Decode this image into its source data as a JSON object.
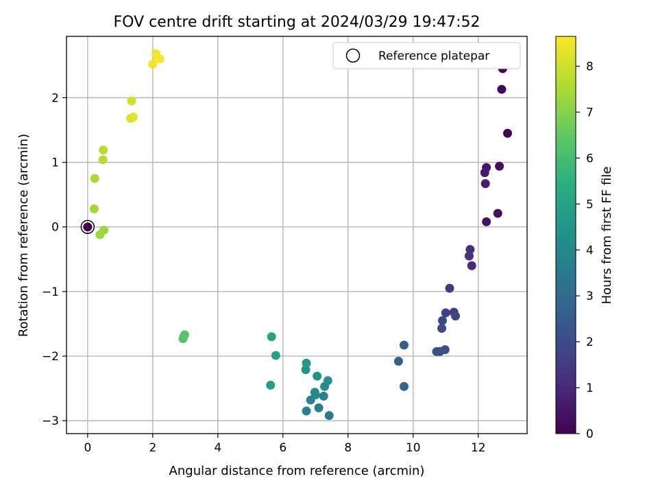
{
  "chart_data": {
    "type": "scatter",
    "title": "FOV centre drift starting at 2024/03/29 19:47:52",
    "xlabel": "Angular distance from reference (arcmin)",
    "ylabel": "Rotation from reference (arcmin)",
    "xlim": [
      -0.65,
      13.5
    ],
    "ylim": [
      -3.2,
      2.95
    ],
    "xticks": [
      0,
      2,
      4,
      6,
      8,
      10,
      12
    ],
    "xtick_labels": [
      "0",
      "2",
      "4",
      "6",
      "8",
      "10",
      "12"
    ],
    "yticks": [
      -3,
      -2,
      -1,
      0,
      1,
      2
    ],
    "ytick_labels": [
      "−3",
      "−2",
      "−1",
      "0",
      "1",
      "2"
    ],
    "grid": true,
    "legend": {
      "location": "upper right",
      "entries": [
        "Reference platepar"
      ]
    },
    "reference_point": {
      "x": 0,
      "y": 0
    },
    "colorbar": {
      "label": "Hours from first FF file",
      "colormap": "viridis",
      "range": [
        0,
        8.65
      ],
      "ticks": [
        0,
        1,
        2,
        3,
        4,
        5,
        6,
        7,
        8
      ],
      "tick_labels": [
        "0",
        "1",
        "2",
        "3",
        "4",
        "5",
        "6",
        "7",
        "8"
      ]
    },
    "points": [
      {
        "x": 0.0,
        "y": 0.0,
        "hours": 0.0
      },
      {
        "x": 12.9,
        "y": 1.45,
        "hours": 0.05
      },
      {
        "x": 12.75,
        "y": 2.45,
        "hours": 0.1
      },
      {
        "x": 12.72,
        "y": 2.13,
        "hours": 0.15
      },
      {
        "x": 12.65,
        "y": 0.94,
        "hours": 0.25
      },
      {
        "x": 12.6,
        "y": 0.21,
        "hours": 0.35
      },
      {
        "x": 12.25,
        "y": 0.08,
        "hours": 0.45
      },
      {
        "x": 12.25,
        "y": 0.92,
        "hours": 0.55
      },
      {
        "x": 12.2,
        "y": 0.84,
        "hours": 0.65
      },
      {
        "x": 12.22,
        "y": 0.67,
        "hours": 0.75
      },
      {
        "x": 11.8,
        "y": -0.6,
        "hours": 1.05
      },
      {
        "x": 11.75,
        "y": -0.35,
        "hours": 1.15
      },
      {
        "x": 11.72,
        "y": -0.45,
        "hours": 1.25
      },
      {
        "x": 11.12,
        "y": -0.95,
        "hours": 1.5
      },
      {
        "x": 11.0,
        "y": -1.33,
        "hours": 1.65
      },
      {
        "x": 11.25,
        "y": -1.32,
        "hours": 1.7
      },
      {
        "x": 11.3,
        "y": -1.38,
        "hours": 1.75
      },
      {
        "x": 10.9,
        "y": -1.45,
        "hours": 1.85
      },
      {
        "x": 10.88,
        "y": -1.57,
        "hours": 1.9
      },
      {
        "x": 10.98,
        "y": -1.9,
        "hours": 2.0
      },
      {
        "x": 10.82,
        "y": -1.93,
        "hours": 2.05
      },
      {
        "x": 10.72,
        "y": -1.93,
        "hours": 2.1
      },
      {
        "x": 9.72,
        "y": -1.83,
        "hours": 2.55
      },
      {
        "x": 9.55,
        "y": -2.08,
        "hours": 2.65
      },
      {
        "x": 9.72,
        "y": -2.47,
        "hours": 2.8
      },
      {
        "x": 7.42,
        "y": -2.92,
        "hours": 3.55
      },
      {
        "x": 7.1,
        "y": -2.8,
        "hours": 3.65
      },
      {
        "x": 6.72,
        "y": -2.85,
        "hours": 3.75
      },
      {
        "x": 7.25,
        "y": -2.62,
        "hours": 3.85
      },
      {
        "x": 6.85,
        "y": -2.68,
        "hours": 3.95
      },
      {
        "x": 7.0,
        "y": -2.6,
        "hours": 4.05
      },
      {
        "x": 6.98,
        "y": -2.56,
        "hours": 4.1
      },
      {
        "x": 7.28,
        "y": -2.47,
        "hours": 4.2
      },
      {
        "x": 7.38,
        "y": -2.38,
        "hours": 4.25
      },
      {
        "x": 7.05,
        "y": -2.31,
        "hours": 4.35
      },
      {
        "x": 6.7,
        "y": -2.21,
        "hours": 4.45
      },
      {
        "x": 6.72,
        "y": -2.11,
        "hours": 4.55
      },
      {
        "x": 5.62,
        "y": -2.45,
        "hours": 4.85
      },
      {
        "x": 5.78,
        "y": -1.99,
        "hours": 4.95
      },
      {
        "x": 5.65,
        "y": -1.7,
        "hours": 5.05
      },
      {
        "x": 2.98,
        "y": -1.67,
        "hours": 6.2
      },
      {
        "x": 2.95,
        "y": -1.7,
        "hours": 6.25
      },
      {
        "x": 2.93,
        "y": -1.73,
        "hours": 6.3
      },
      {
        "x": 0.5,
        "y": -0.05,
        "hours": 7.3
      },
      {
        "x": 0.38,
        "y": -0.12,
        "hours": 7.35
      },
      {
        "x": 0.2,
        "y": 0.28,
        "hours": 7.45
      },
      {
        "x": 0.22,
        "y": 0.75,
        "hours": 7.55
      },
      {
        "x": 0.47,
        "y": 1.04,
        "hours": 7.65
      },
      {
        "x": 0.48,
        "y": 1.19,
        "hours": 7.7
      },
      {
        "x": 1.35,
        "y": 1.95,
        "hours": 8.1
      },
      {
        "x": 1.32,
        "y": 1.68,
        "hours": 8.2
      },
      {
        "x": 1.4,
        "y": 1.7,
        "hours": 8.25
      },
      {
        "x": 2.0,
        "y": 2.52,
        "hours": 8.45
      },
      {
        "x": 2.1,
        "y": 2.68,
        "hours": 8.5
      },
      {
        "x": 2.22,
        "y": 2.6,
        "hours": 8.55
      },
      {
        "x": 2.15,
        "y": 2.62,
        "hours": 8.6
      }
    ]
  }
}
